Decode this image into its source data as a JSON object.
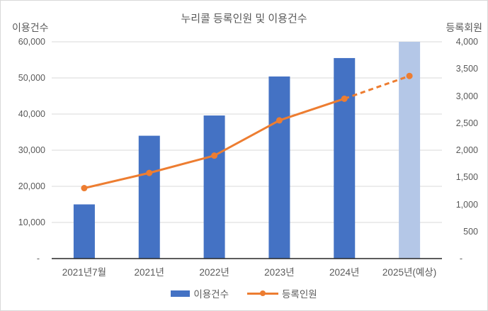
{
  "chart_data": {
    "type": "combo-bar-line",
    "title": "누리콜 등록인원 및 이용건수",
    "categories": [
      "2021년7월",
      "2021년",
      "2022년",
      "2023년",
      "2024년",
      "2025년(예상)"
    ],
    "series": [
      {
        "name": "이용건수",
        "type": "bar",
        "axis": "left",
        "values": [
          15000,
          34000,
          39600,
          50400,
          55500,
          60000
        ],
        "point_colors": [
          "#4472C4",
          "#4472C4",
          "#4472C4",
          "#4472C4",
          "#4472C4",
          "#B4C7E7"
        ]
      },
      {
        "name": "등록인원",
        "type": "line",
        "axis": "right",
        "values": [
          1300,
          1580,
          1900,
          2550,
          2950,
          3370
        ],
        "color": "#ED7D31",
        "dashed_from_index": 4
      }
    ],
    "left_axis": {
      "label": "이용건수",
      "min": 0,
      "max": 60000,
      "step": 10000,
      "tick_labels": [
        "60,000",
        "50,000",
        "40,000",
        "30,000",
        "20,000",
        "10,000",
        "-"
      ]
    },
    "right_axis": {
      "label": "등록회원",
      "min": 0,
      "max": 4000,
      "step": 500,
      "tick_labels": [
        "4,000",
        "3,500",
        "3,000",
        "2,500",
        "2,000",
        "1,500",
        "1,000",
        "500",
        "-"
      ]
    },
    "legend": [
      {
        "label": "이용건수",
        "swatch": "bar"
      },
      {
        "label": "등록인원",
        "swatch": "line-marker"
      }
    ],
    "colors": {
      "bar": "#4472C4",
      "bar_forecast": "#B4C7E7",
      "line": "#ED7D31",
      "text": "#595959",
      "gridline": "#D9D9D9",
      "axis_line": "#262626",
      "background": "#FFFFFF",
      "border": "#D9D9D9"
    },
    "layout": {
      "gridlines": "horizontal",
      "legend_position": "bottom"
    }
  }
}
